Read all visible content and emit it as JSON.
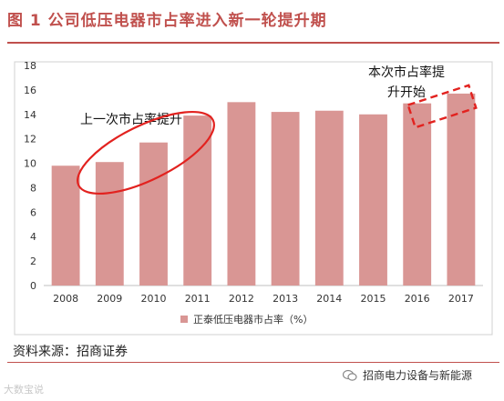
{
  "figure": {
    "title": "图 1 公司低压电器市占率进入新一轮提升期",
    "source": "资料来源：招商证券",
    "watermark": "招商电力设备与新能源",
    "watermark_bottom": "大数宝说"
  },
  "colors": {
    "accent": "#c0504d",
    "bar": "#d99694",
    "annotation": "#e2221f"
  },
  "chart_data": {
    "type": "bar",
    "categories": [
      "2008",
      "2009",
      "2010",
      "2011",
      "2012",
      "2013",
      "2014",
      "2015",
      "2016",
      "2017"
    ],
    "series": [
      {
        "name": "正泰低压电器市占率（%）",
        "values": [
          9.8,
          10.1,
          11.7,
          13.9,
          15.0,
          14.2,
          14.3,
          14.0,
          14.9,
          15.7
        ]
      }
    ],
    "ylim": [
      0,
      18
    ],
    "yticks": [
      0,
      2,
      4,
      6,
      8,
      10,
      12,
      14,
      16,
      18
    ],
    "xlabel": "",
    "ylabel": "",
    "grid": false,
    "legend_position": "bottom",
    "annotations": [
      {
        "text": "上一次市占率提升",
        "shape": "ellipse",
        "years": [
          "2008",
          "2011"
        ]
      },
      {
        "text_lines": [
          "本次市占率提",
          "升开始"
        ],
        "shape": "dashed-box",
        "years": [
          "2016",
          "2017"
        ]
      }
    ]
  }
}
